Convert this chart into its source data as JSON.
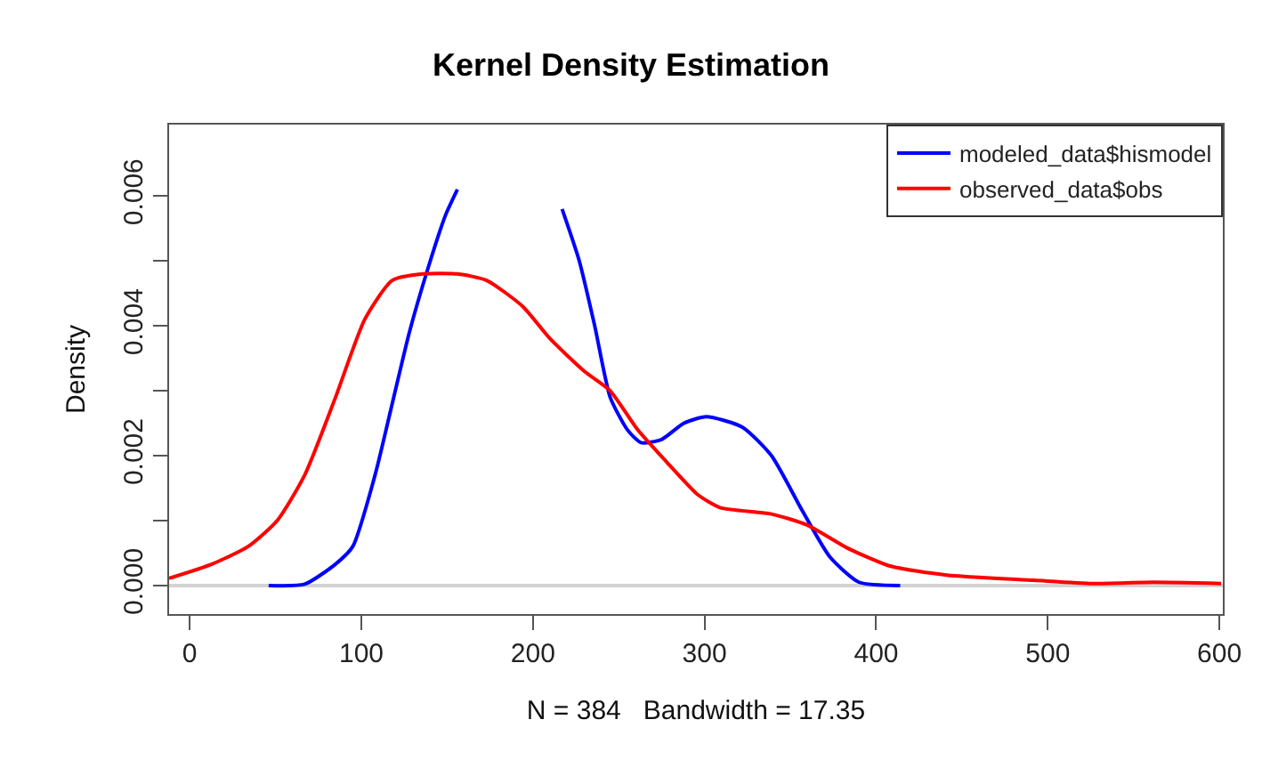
{
  "chart_data": {
    "type": "line",
    "title": "Kernel Density Estimation",
    "xlabel": "N = 384   Bandwidth = 17.35",
    "ylabel": "Density",
    "xlim": [
      -12,
      602
    ],
    "xticks": [
      0,
      100,
      200,
      300,
      400,
      500,
      600
    ],
    "ylim": [
      -0.00044,
      0.0071
    ],
    "yticks": [
      {
        "value": 0,
        "label": "0.000"
      },
      {
        "value": 0.001,
        "label": null
      },
      {
        "value": 0.002,
        "label": "0.002"
      },
      {
        "value": 0.003,
        "label": null
      },
      {
        "value": 0.004,
        "label": "0.004"
      },
      {
        "value": 0.005,
        "label": null
      },
      {
        "value": 0.006,
        "label": "0.006"
      }
    ],
    "grid": false,
    "legend": "top right",
    "line_style": "solid",
    "marker": "none",
    "ref_lines": [
      {
        "axis": "y",
        "value": 0,
        "color": "#d3d3d3"
      }
    ],
    "series": [
      {
        "name": "modeled_data$hismodel",
        "color": "#0000ff",
        "x": [
          46,
          67,
          85,
          95,
          108,
          118,
          128,
          139,
          149,
          156,
          190,
          217,
          227,
          236,
          245,
          255,
          263,
          275,
          288,
          301,
          322,
          339,
          357,
          373,
          390,
          414
        ],
        "values": [
          0,
          2e-05,
          0.00033,
          0.0006,
          0.0017,
          0.0028,
          0.0039,
          0.0049,
          0.0057,
          0.0061,
          null,
          0.0058,
          0.005,
          0.004,
          0.0029,
          0.0024,
          0.0022,
          0.00225,
          0.0025,
          0.0026,
          0.00244,
          0.002,
          0.00115,
          0.00044,
          5e-05,
          0
        ]
      },
      {
        "name": "observed_data$obs",
        "color": "#ff0000",
        "x": [
          -12,
          13,
          34,
          51,
          67,
          85,
          102,
          118,
          136,
          156,
          173,
          194,
          210,
          230,
          245,
          261,
          278,
          296,
          309,
          339,
          360,
          383,
          408,
          441,
          492,
          526,
          561,
          601
        ],
        "values": [
          0.00011,
          0.00033,
          0.0006,
          0.001,
          0.0017,
          0.0029,
          0.0041,
          0.0047,
          0.0048,
          0.0048,
          0.0047,
          0.0043,
          0.0038,
          0.0033,
          0.003,
          0.0024,
          0.0019,
          0.0014,
          0.0012,
          0.0011,
          0.00093,
          0.00058,
          0.0003,
          0.00016,
          8e-05,
          3e-05,
          5e-05,
          3e-05
        ]
      }
    ]
  }
}
